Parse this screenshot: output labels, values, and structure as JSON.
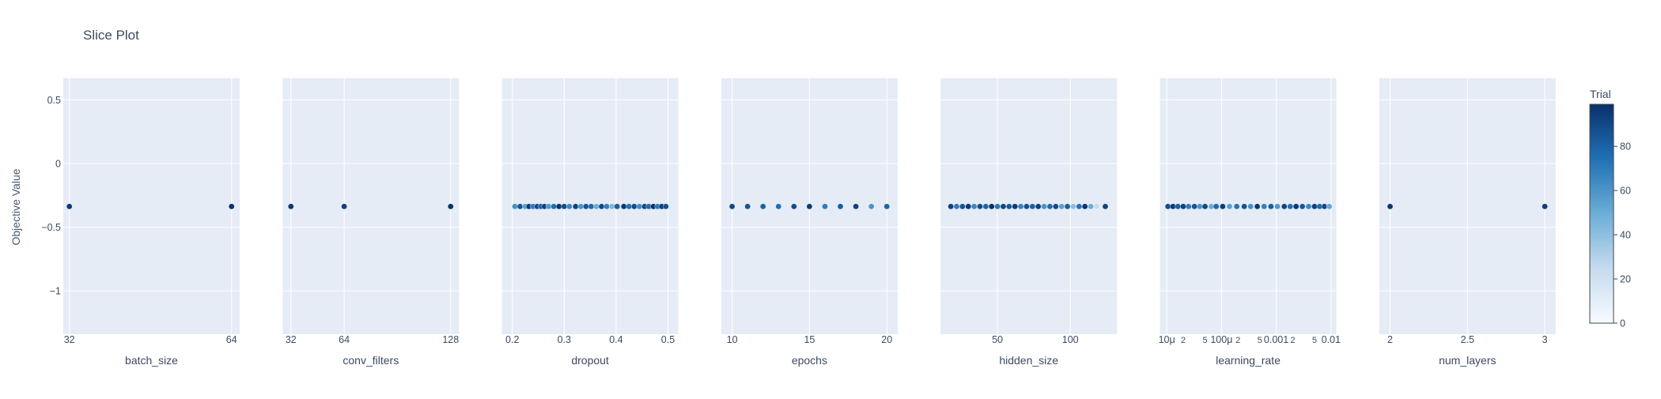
{
  "chart_data": {
    "type": "scatter",
    "title": "Slice Plot",
    "ylabel": "Objective Value",
    "ylim": [
      -1.34,
      0.67
    ],
    "yticks": [
      0.5,
      0,
      -0.5,
      -1
    ],
    "ytick_labels": [
      "0.5",
      "0",
      "−0.5",
      "−1"
    ],
    "grid": true,
    "colorscale": [
      "#f7fbff",
      "#c6dbef",
      "#6baed6",
      "#2171b5",
      "#08306b"
    ],
    "colorbar": {
      "title": "Trial",
      "range": [
        0,
        99
      ],
      "ticks": [
        0,
        20,
        40,
        60,
        80
      ],
      "tick_labels": [
        "0",
        "20",
        "40",
        "60",
        "80"
      ]
    },
    "panels": [
      {
        "xlabel": "batch_size",
        "scale": "linear",
        "xlim": [
          30.8,
          65.6
        ],
        "ticks": [
          32,
          64
        ],
        "tick_labels": [
          "32",
          "64"
        ],
        "points": [
          [
            32,
            -0.337,
            95
          ],
          [
            64,
            -0.337,
            97
          ]
        ]
      },
      {
        "xlabel": "conv_filters",
        "scale": "linear",
        "xlim": [
          27,
          133
        ],
        "ticks": [
          32,
          64,
          128
        ],
        "tick_labels": [
          "32",
          "64",
          "128"
        ],
        "points": [
          [
            32,
            -0.337,
            96
          ],
          [
            64,
            -0.337,
            92
          ],
          [
            128,
            -0.337,
            98
          ]
        ]
      },
      {
        "xlabel": "dropout",
        "scale": "linear",
        "xlim": [
          0.18,
          0.52
        ],
        "ticks": [
          0.2,
          0.3,
          0.4,
          0.5
        ],
        "tick_labels": [
          "0.2",
          "0.3",
          "0.4",
          "0.5"
        ],
        "points": [
          [
            0.205,
            -0.337,
            62
          ],
          [
            0.215,
            -0.337,
            85
          ],
          [
            0.225,
            -0.337,
            55
          ],
          [
            0.232,
            -0.337,
            95
          ],
          [
            0.24,
            -0.337,
            70
          ],
          [
            0.248,
            -0.337,
            90
          ],
          [
            0.255,
            -0.337,
            80
          ],
          [
            0.262,
            -0.337,
            93
          ],
          [
            0.27,
            -0.337,
            58
          ],
          [
            0.28,
            -0.337,
            75
          ],
          [
            0.29,
            -0.337,
            97
          ],
          [
            0.3,
            -0.337,
            88
          ],
          [
            0.31,
            -0.337,
            65
          ],
          [
            0.322,
            -0.337,
            92
          ],
          [
            0.332,
            -0.337,
            60
          ],
          [
            0.342,
            -0.337,
            85
          ],
          [
            0.352,
            -0.337,
            78
          ],
          [
            0.362,
            -0.337,
            50
          ],
          [
            0.372,
            -0.337,
            90
          ],
          [
            0.382,
            -0.337,
            68
          ],
          [
            0.392,
            -0.337,
            45
          ],
          [
            0.402,
            -0.337,
            82
          ],
          [
            0.415,
            -0.337,
            96
          ],
          [
            0.425,
            -0.337,
            74
          ],
          [
            0.435,
            -0.337,
            88
          ],
          [
            0.445,
            -0.337,
            63
          ],
          [
            0.455,
            -0.337,
            91
          ],
          [
            0.463,
            -0.337,
            77
          ],
          [
            0.472,
            -0.337,
            99
          ],
          [
            0.48,
            -0.337,
            71
          ],
          [
            0.488,
            -0.337,
            94
          ],
          [
            0.496,
            -0.337,
            86
          ]
        ]
      },
      {
        "xlabel": "epochs",
        "scale": "linear",
        "xlim": [
          9.3,
          20.7
        ],
        "ticks": [
          10,
          15,
          20
        ],
        "tick_labels": [
          "10",
          "15",
          "20"
        ],
        "points": [
          [
            10,
            -0.337,
            90
          ],
          [
            11,
            -0.337,
            85
          ],
          [
            12,
            -0.337,
            80
          ],
          [
            13,
            -0.337,
            75
          ],
          [
            14,
            -0.337,
            88
          ],
          [
            15,
            -0.337,
            95
          ],
          [
            16,
            -0.337,
            70
          ],
          [
            17,
            -0.337,
            82
          ],
          [
            18,
            -0.337,
            92
          ],
          [
            19,
            -0.337,
            60
          ],
          [
            20,
            -0.337,
            78
          ]
        ]
      },
      {
        "xlabel": "hidden_size",
        "scale": "linear",
        "xlim": [
          11,
          132
        ],
        "ticks": [
          50,
          100
        ],
        "tick_labels": [
          "50",
          "100"
        ],
        "points": [
          [
            18,
            -0.337,
            92
          ],
          [
            22,
            -0.337,
            70
          ],
          [
            26,
            -0.337,
            85
          ],
          [
            30,
            -0.337,
            96
          ],
          [
            34,
            -0.337,
            65
          ],
          [
            38,
            -0.337,
            88
          ],
          [
            42,
            -0.337,
            78
          ],
          [
            46,
            -0.337,
            99
          ],
          [
            50,
            -0.337,
            72
          ],
          [
            54,
            -0.337,
            90
          ],
          [
            58,
            -0.337,
            83
          ],
          [
            62,
            -0.337,
            94
          ],
          [
            66,
            -0.337,
            67
          ],
          [
            70,
            -0.337,
            87
          ],
          [
            74,
            -0.337,
            80
          ],
          [
            78,
            -0.337,
            93
          ],
          [
            82,
            -0.337,
            60
          ],
          [
            86,
            -0.337,
            76
          ],
          [
            90,
            -0.337,
            89
          ],
          [
            94,
            -0.337,
            55
          ],
          [
            98,
            -0.337,
            82
          ],
          [
            102,
            -0.337,
            40
          ],
          [
            106,
            -0.337,
            74
          ],
          [
            110,
            -0.337,
            97
          ],
          [
            114,
            -0.337,
            50
          ],
          [
            118,
            -0.337,
            25
          ],
          [
            124,
            -0.337,
            91
          ]
        ]
      },
      {
        "xlabel": "learning_rate",
        "scale": "log",
        "xlim": [
          7.5e-06,
          0.0125
        ],
        "ticks": [
          1e-05,
          2e-05,
          5e-05,
          0.0001,
          0.0002,
          0.0005,
          0.001,
          0.002,
          0.005,
          0.01
        ],
        "tick_labels": [
          "10μ",
          "2",
          "5",
          "100μ",
          "2",
          "5",
          "0.001",
          "2",
          "5",
          "0.01"
        ],
        "points": [
          [
            1.05e-05,
            -0.337,
            88
          ],
          [
            1.3e-05,
            -0.337,
            95
          ],
          [
            1.6e-05,
            -0.337,
            80
          ],
          [
            2e-05,
            -0.337,
            92
          ],
          [
            2.5e-05,
            -0.337,
            70
          ],
          [
            3.2e-05,
            -0.337,
            85
          ],
          [
            4e-05,
            -0.337,
            60
          ],
          [
            5e-05,
            -0.337,
            90
          ],
          [
            6.5e-05,
            -0.337,
            50
          ],
          [
            8e-05,
            -0.337,
            78
          ],
          [
            0.000105,
            -0.337,
            94
          ],
          [
            0.00014,
            -0.337,
            55
          ],
          [
            0.00019,
            -0.337,
            73
          ],
          [
            0.00026,
            -0.337,
            86
          ],
          [
            0.00034,
            -0.337,
            62
          ],
          [
            0.00045,
            -0.337,
            97
          ],
          [
            0.0006,
            -0.337,
            68
          ],
          [
            0.0008,
            -0.337,
            82
          ],
          [
            0.00105,
            -0.337,
            58
          ],
          [
            0.0014,
            -0.337,
            91
          ],
          [
            0.0018,
            -0.337,
            75
          ],
          [
            0.0023,
            -0.337,
            96
          ],
          [
            0.003,
            -0.337,
            84
          ],
          [
            0.0039,
            -0.337,
            65
          ],
          [
            0.005,
            -0.337,
            93
          ],
          [
            0.0062,
            -0.337,
            77
          ],
          [
            0.0076,
            -0.337,
            89
          ],
          [
            0.0093,
            -0.337,
            52
          ]
        ]
      },
      {
        "xlabel": "num_layers",
        "scale": "linear",
        "xlim": [
          1.93,
          3.07
        ],
        "ticks": [
          2,
          2.5,
          3
        ],
        "tick_labels": [
          "2",
          "2.5",
          "3"
        ],
        "points": [
          [
            2,
            -0.337,
            96
          ],
          [
            3,
            -0.337,
            94
          ]
        ]
      }
    ]
  }
}
